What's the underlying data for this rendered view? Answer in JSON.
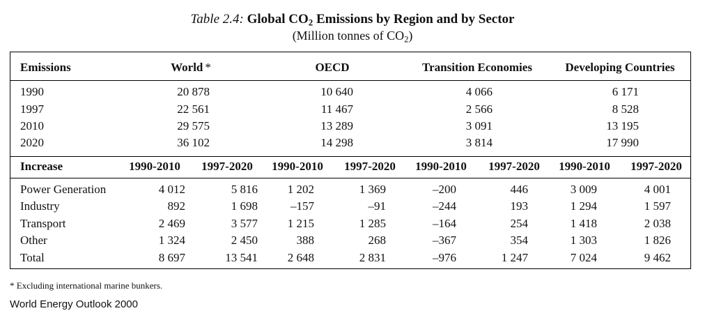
{
  "title": {
    "prefix": "Table 2.4:",
    "main_before": "Global CO",
    "main_sub": "2",
    "main_after": " Emissions by Region and by Sector",
    "sub_before": "(Million tonnes of CO",
    "sub_sub": "2",
    "sub_after": ")"
  },
  "emissions": {
    "header": {
      "label": "Emissions",
      "columns": [
        "World",
        "OECD",
        "Transition Economies",
        "Developing Countries"
      ],
      "world_marker": "*"
    },
    "rows": [
      {
        "year": "1990",
        "values": [
          "20 878",
          "10 640",
          "4 066",
          "6 171"
        ]
      },
      {
        "year": "1997",
        "values": [
          "22 561",
          "11 467",
          "2 566",
          "8 528"
        ]
      },
      {
        "year": "2010",
        "values": [
          "29 575",
          "13 289",
          "3 091",
          "13 195"
        ]
      },
      {
        "year": "2020",
        "values": [
          "36 102",
          "14 298",
          "3 814",
          "17 990"
        ]
      }
    ]
  },
  "increase": {
    "header": {
      "label": "Increase",
      "periods": [
        "1990-2010",
        "1997-2020",
        "1990-2010",
        "1997-2020",
        "1990-2010",
        "1997-2020",
        "1990-2010",
        "1997-2020"
      ]
    },
    "rows": [
      {
        "sector": "Power Generation",
        "values": [
          "4 012",
          "5 816",
          "1 202",
          "1 369",
          "–200",
          "446",
          "3 009",
          "4 001"
        ]
      },
      {
        "sector": "Industry",
        "values": [
          "892",
          "1 698",
          "–157",
          "–91",
          "–244",
          "193",
          "1 294",
          "1 597"
        ]
      },
      {
        "sector": "Transport",
        "values": [
          "2 469",
          "3 577",
          "1 215",
          "1 285",
          "–164",
          "254",
          "1 418",
          "2 038"
        ]
      },
      {
        "sector": "Other",
        "values": [
          "1 324",
          "2 450",
          "388",
          "268",
          "–367",
          "354",
          "1 303",
          "1 826"
        ]
      },
      {
        "sector": "Total",
        "values": [
          "8 697",
          "13 541",
          "2 648",
          "2 831",
          "–976",
          "1 247",
          "7 024",
          "9 462"
        ]
      }
    ]
  },
  "footnote": "* Excluding international marine bunkers.",
  "source": "World Energy Outlook 2000"
}
